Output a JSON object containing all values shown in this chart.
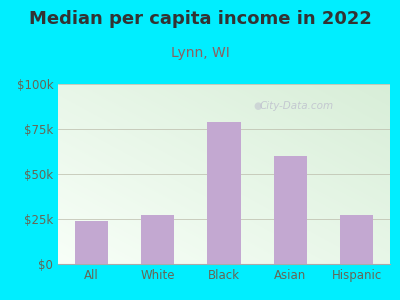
{
  "title": "Median per capita income in 2022",
  "subtitle": "Lynn, WI",
  "categories": [
    "All",
    "White",
    "Black",
    "Asian",
    "Hispanic"
  ],
  "values": [
    24000,
    27000,
    79000,
    60000,
    27000
  ],
  "bar_color": "#c3a8d1",
  "outer_bg_color": "#00eeff",
  "plot_bg_color_top_right": "#d8eed8",
  "plot_bg_color_bottom_left": "#f8fff8",
  "title_color": "#333333",
  "subtitle_color": "#8b6060",
  "tick_label_color": "#666655",
  "ytick_labels": [
    "$0",
    "$25k",
    "$50k",
    "$75k",
    "$100k"
  ],
  "ytick_values": [
    0,
    25000,
    50000,
    75000,
    100000
  ],
  "ylim": [
    0,
    100000
  ],
  "watermark_text": "City-Data.com",
  "title_fontsize": 13,
  "subtitle_fontsize": 10,
  "tick_fontsize": 8.5,
  "bar_width": 0.5
}
